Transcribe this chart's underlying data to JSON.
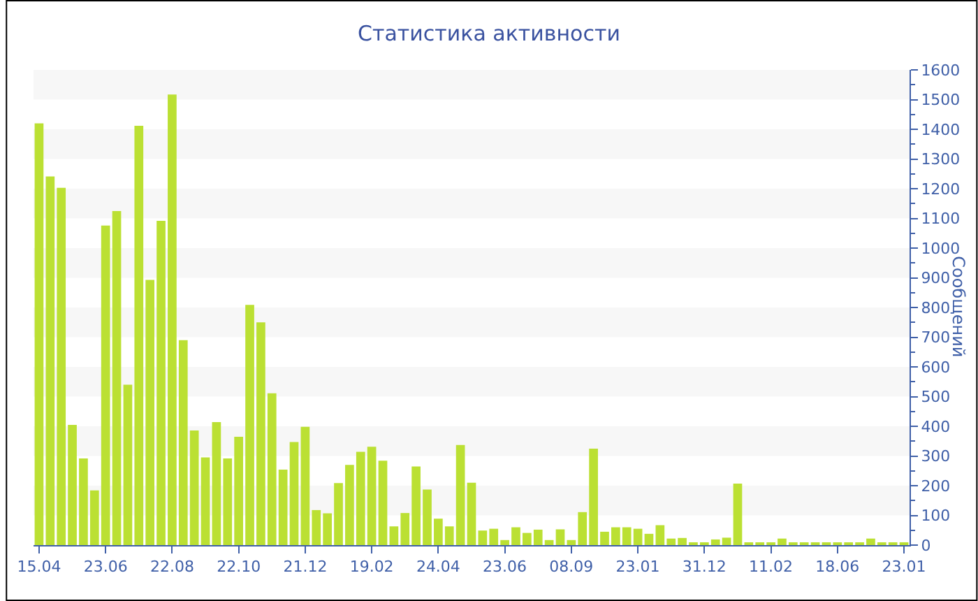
{
  "chart_data": {
    "type": "bar",
    "title": "Статистика активности",
    "ylabel": "Сообщений",
    "categories": [
      "15.04",
      null,
      null,
      null,
      null,
      null,
      "23.06",
      null,
      null,
      null,
      null,
      null,
      "22.08",
      null,
      null,
      null,
      null,
      null,
      "22.10",
      null,
      null,
      null,
      null,
      null,
      "21.12",
      null,
      null,
      null,
      null,
      null,
      "19.02",
      null,
      null,
      null,
      null,
      null,
      "24.04",
      null,
      null,
      null,
      null,
      null,
      "23.06",
      null,
      null,
      null,
      null,
      null,
      "08.09",
      null,
      null,
      null,
      null,
      null,
      "23.01",
      null,
      null,
      null,
      null,
      null,
      "31.12",
      null,
      null,
      null,
      null,
      null,
      "11.02",
      null,
      null,
      null,
      null,
      null,
      "18.06",
      null,
      null,
      null,
      null,
      null,
      "23.01"
    ],
    "series": [
      {
        "color": "#bbe033",
        "values": [
          1420,
          1241,
          1203,
          405,
          292,
          184,
          1076,
          1125,
          540,
          1412,
          893,
          1092,
          1517,
          690,
          386,
          295,
          414,
          292,
          365,
          809,
          750,
          511,
          254,
          347,
          398,
          118,
          107,
          209,
          270,
          314,
          331,
          284,
          63,
          108,
          265,
          187,
          89,
          63,
          337,
          210,
          49,
          55,
          17,
          60,
          41,
          52,
          17,
          53,
          17,
          111,
          325,
          45,
          60,
          60,
          55,
          38,
          67,
          22,
          24,
          5,
          5,
          19,
          25,
          207,
          9,
          6,
          6,
          22,
          8,
          5,
          5,
          6,
          6,
          5,
          5,
          22,
          6,
          6,
          6
        ]
      }
    ],
    "ylim": [
      0,
      1600
    ],
    "yticks": [
      0,
      100,
      200,
      300,
      400,
      500,
      600,
      700,
      800,
      900,
      1000,
      1100,
      1200,
      1300,
      1400,
      1500,
      1600
    ],
    "bands": [
      {
        "axis": "y",
        "from": 1500,
        "to": 1600,
        "color": "#f7f7f7"
      },
      {
        "axis": "y",
        "from": 1300,
        "to": 1400,
        "color": "#f7f7f7"
      },
      {
        "axis": "y",
        "from": 1100,
        "to": 1200,
        "color": "#f7f7f7"
      },
      {
        "axis": "y",
        "from": 900,
        "to": 1000,
        "color": "#f7f7f7"
      },
      {
        "axis": "y",
        "from": 700,
        "to": 800,
        "color": "#f7f7f7"
      },
      {
        "axis": "y",
        "from": 500,
        "to": 600,
        "color": "#f7f7f7"
      },
      {
        "axis": "y",
        "from": 300,
        "to": 400,
        "color": "#f7f7f7"
      },
      {
        "axis": "y",
        "from": 100,
        "to": 200,
        "color": "#f7f7f7"
      }
    ],
    "grid": false
  }
}
